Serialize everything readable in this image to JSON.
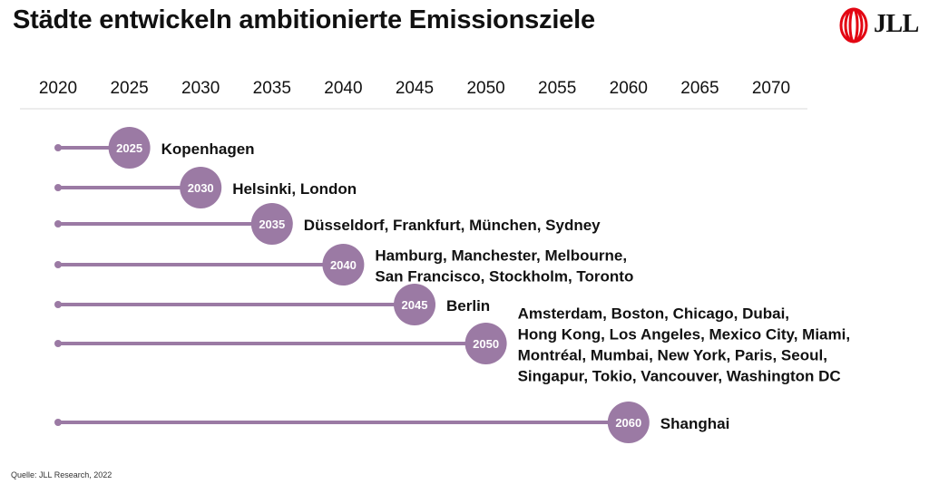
{
  "title": "Städte entwickeln ambitionierte Emissionsziele",
  "logo": {
    "text": "JLL",
    "color": "#e30613"
  },
  "source": "Quelle: JLL Research, 2022",
  "colors": {
    "marker": "#9b7aa4",
    "line": "#9b7aa4",
    "axis_rule": "#d9d9d9"
  },
  "chart_data": {
    "type": "timeline",
    "title": "Städte entwickeln ambitionierte Emissionsziele",
    "x_ticks": [
      2020,
      2025,
      2030,
      2035,
      2040,
      2045,
      2050,
      2055,
      2060,
      2065,
      2070
    ],
    "xlim": [
      2020,
      2070
    ],
    "start_year": 2020,
    "rows": [
      {
        "target": 2025,
        "label": "2025",
        "cities": [
          "Kopenhagen"
        ]
      },
      {
        "target": 2030,
        "label": "2030",
        "cities": [
          "Helsinki, London"
        ]
      },
      {
        "target": 2035,
        "label": "2035",
        "cities": [
          "Düsseldorf, Frankfurt, München, Sydney"
        ]
      },
      {
        "target": 2040,
        "label": "2040",
        "cities": [
          "Hamburg, Manchester, Melbourne,",
          "San Francisco, Stockholm, Toronto"
        ]
      },
      {
        "target": 2045,
        "label": "2045",
        "cities": [
          "Berlin"
        ]
      },
      {
        "target": 2050,
        "label": "2050",
        "cities": [
          "Amsterdam, Boston, Chicago, Dubai,",
          "Hong Kong, Los Angeles, Mexico City, Miami,",
          "Montréal, Mumbai, New York, Paris, Seoul,",
          "Singapur, Tokio, Vancouver, Washington DC"
        ]
      },
      {
        "target": 2060,
        "label": "2060",
        "cities": [
          "Shanghai"
        ]
      }
    ]
  }
}
